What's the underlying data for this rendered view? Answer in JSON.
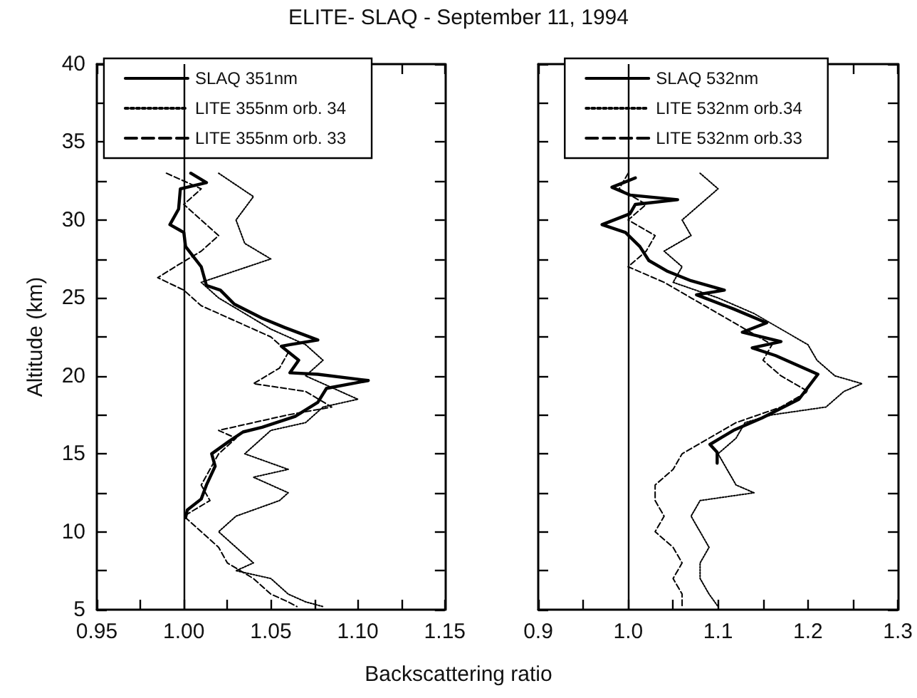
{
  "chart_data": [
    {
      "type": "line",
      "title": "ELITE- SLAQ - September 11, 1994",
      "xlabel": "Backscattering ratio",
      "ylabel": "Altitude (km)",
      "xlim": [
        0.95,
        1.15
      ],
      "xticks": [
        {
          "value": 0.95,
          "label": "0.95"
        },
        {
          "value": 0.975,
          "label": null
        },
        {
          "value": 1,
          "label": "1.00"
        },
        {
          "value": 1.025,
          "label": null
        },
        {
          "value": 1.05,
          "label": "1.05"
        },
        {
          "value": 1.075,
          "label": null
        },
        {
          "value": 1.1,
          "label": "1.10"
        },
        {
          "value": 1.125,
          "label": null
        },
        {
          "value": 1.15,
          "label": "1.15"
        }
      ],
      "ylim": [
        5,
        40
      ],
      "yticks": [
        5,
        {
          "value": 7.5,
          "label": null
        },
        10,
        {
          "value": 12.5,
          "label": null
        },
        15,
        {
          "value": 17.5,
          "label": null
        },
        20,
        {
          "value": 22.5,
          "label": null
        },
        25,
        {
          "value": 27.5,
          "label": null
        },
        30,
        {
          "value": 32.5,
          "label": null
        },
        35,
        {
          "value": 37.5,
          "label": null
        },
        40
      ],
      "grid": false,
      "legend": "top",
      "marker": "none",
      "ref_lines": [
        {
          "axis": "x",
          "value": 1,
          "color": "#000000",
          "line_style": "solid"
        }
      ],
      "series": [
        {
          "name": "SLAQ 351nm",
          "color": "#000000",
          "line_style": "solid",
          "x": [
            1.004,
            1.013,
            0.998,
            0.997,
            0.992,
            1.0,
            1.001,
            1.01,
            1.013,
            1.021,
            1.029,
            1.045,
            1.058,
            1.077,
            1.061,
            1.056,
            1.066,
            1.061,
            1.077,
            1.106,
            1.082,
            1.077,
            1.064,
            1.045,
            1.034,
            1.026,
            1.016,
            1.018,
            1.013,
            1.01,
            1.002,
            1.001
          ],
          "values": [
            33.0,
            32.4,
            32.0,
            30.7,
            29.7,
            29.2,
            28.3,
            27.0,
            25.8,
            25.5,
            24.6,
            23.7,
            23.1,
            22.3,
            22.0,
            21.9,
            21.0,
            20.2,
            20.1,
            19.7,
            19.2,
            18.3,
            17.4,
            16.7,
            16.4,
            15.8,
            15.0,
            14.2,
            13.0,
            12.1,
            11.4,
            10.9
          ]
        },
        {
          "name": "LITE 355nm orb. 34",
          "color": "#000000",
          "line_style": "dotted",
          "x": [
            1.02,
            1.04,
            1.03,
            1.035,
            1.05,
            1.01,
            1.02,
            1.035,
            1.05,
            1.07,
            1.08,
            1.07,
            1.09,
            1.1,
            1.08,
            1.07,
            1.05,
            1.045,
            1.035,
            1.06,
            1.04,
            1.05,
            1.06,
            1.055,
            1.03,
            1.02,
            1.03,
            1.04,
            1.03,
            1.05,
            1.06,
            1.07,
            1.08
          ],
          "values": [
            33,
            31.5,
            30,
            28.5,
            27.5,
            26,
            25,
            24,
            23,
            22,
            21,
            20,
            19,
            18.5,
            18,
            17,
            16.5,
            16,
            15,
            14,
            13.5,
            13,
            12.5,
            12,
            11,
            10,
            9,
            8,
            7.5,
            7,
            6,
            5.5,
            5.2
          ]
        },
        {
          "name": "LITE 355nm orb. 33",
          "color": "#000000",
          "line_style": "dashed",
          "x": [
            0.99,
            1.01,
            1.0,
            1.01,
            1.02,
            1.01,
            0.995,
            0.985,
            1.0,
            1.01,
            1.03,
            1.05,
            1.06,
            1.055,
            1.04,
            1.07,
            1.085,
            1.06,
            1.04,
            1.02,
            1.03,
            1.02,
            1.015,
            1.01,
            1.015,
            1.0,
            1.01,
            1.02,
            1.025,
            1.04,
            1.05,
            1.06,
            1.065
          ],
          "values": [
            33,
            32,
            31,
            30,
            29,
            28,
            27,
            26.3,
            25.5,
            24.5,
            23.5,
            22.5,
            21.5,
            20.5,
            19.5,
            19,
            18,
            17.5,
            17,
            16.5,
            16,
            15,
            14,
            13,
            12,
            11,
            10,
            9,
            8,
            7,
            6,
            5.5,
            5.2
          ]
        }
      ]
    },
    {
      "type": "line",
      "xlim": [
        0.9,
        1.3
      ],
      "xticks": [
        {
          "value": 0.9,
          "label": "0.9"
        },
        {
          "value": 0.95,
          "label": null
        },
        {
          "value": 1,
          "label": "1.0"
        },
        {
          "value": 1.05,
          "label": null
        },
        {
          "value": 1.1,
          "label": "1.1"
        },
        {
          "value": 1.15,
          "label": null
        },
        {
          "value": 1.2,
          "label": "1.2"
        },
        {
          "value": 1.25,
          "label": null
        },
        {
          "value": 1.3,
          "label": "1.3"
        }
      ],
      "ylim": [
        5,
        40
      ],
      "yticks": [
        5,
        {
          "value": 7.5,
          "label": null
        },
        10,
        {
          "value": 12.5,
          "label": null
        },
        15,
        {
          "value": 17.5,
          "label": null
        },
        20,
        {
          "value": 22.5,
          "label": null
        },
        25,
        {
          "value": 27.5,
          "label": null
        },
        30,
        {
          "value": 32.5,
          "label": null
        },
        35,
        {
          "value": 37.5,
          "label": null
        },
        40
      ],
      "tick_labels": "x",
      "grid": false,
      "legend": "top",
      "marker": "none",
      "ref_lines": [
        {
          "axis": "x",
          "value": 1,
          "color": "#000000",
          "line_style": "solid"
        }
      ],
      "series": [
        {
          "name": "SLAQ 532nm",
          "color": "#000000",
          "line_style": "solid",
          "x": [
            1.008,
            0.982,
            1.002,
            1.055,
            1.008,
            1.002,
            0.971,
            0.997,
            1.013,
            1.023,
            1.044,
            1.07,
            1.107,
            1.076,
            1.117,
            1.154,
            1.127,
            1.17,
            1.138,
            1.164,
            1.211,
            1.19,
            1.149,
            1.117,
            1.091,
            1.099,
            1.099
          ],
          "values": [
            32.7,
            32.1,
            31.6,
            31.3,
            31.0,
            30.4,
            29.7,
            29.2,
            28.3,
            27.4,
            26.7,
            26.1,
            25.5,
            25.2,
            24.3,
            23.4,
            22.8,
            22.2,
            21.8,
            21.3,
            20.1,
            18.5,
            17.3,
            16.5,
            15.6,
            15.1,
            14.4
          ]
        },
        {
          "name": "LITE 532nm orb.34",
          "color": "#000000",
          "line_style": "dotted",
          "x": [
            1.08,
            1.1,
            1.08,
            1.06,
            1.07,
            1.04,
            1.06,
            1.05,
            1.1,
            1.14,
            1.17,
            1.2,
            1.21,
            1.23,
            1.26,
            1.24,
            1.22,
            1.16,
            1.13,
            1.12,
            1.1,
            1.11,
            1.12,
            1.14,
            1.08,
            1.07,
            1.08,
            1.09,
            1.08,
            1.08,
            1.09,
            1.1
          ],
          "values": [
            33,
            32,
            31,
            30,
            29,
            28,
            27,
            26,
            25,
            24,
            23,
            22,
            21,
            20,
            19.5,
            19,
            18,
            17.5,
            17,
            16,
            15,
            14,
            13,
            12.5,
            12,
            11,
            10,
            9,
            8,
            7,
            6,
            5.2
          ]
        },
        {
          "name": "LITE 532nm orb.33",
          "color": "#000000",
          "line_style": "dashed",
          "x": [
            1.0,
            0.99,
            1.02,
            1.0,
            1.03,
            1.02,
            1.0,
            1.04,
            1.07,
            1.1,
            1.13,
            1.16,
            1.15,
            1.17,
            1.2,
            1.17,
            1.12,
            1.09,
            1.06,
            1.05,
            1.03,
            1.03,
            1.04,
            1.03,
            1.05,
            1.06,
            1.05,
            1.06,
            1.06
          ],
          "values": [
            33,
            32,
            31,
            30,
            29,
            28,
            27,
            26,
            25,
            24,
            23,
            22,
            21,
            20,
            19,
            18,
            17,
            16,
            15,
            14,
            13,
            12,
            11,
            10,
            9,
            8,
            7,
            6,
            5.2
          ]
        }
      ]
    }
  ]
}
